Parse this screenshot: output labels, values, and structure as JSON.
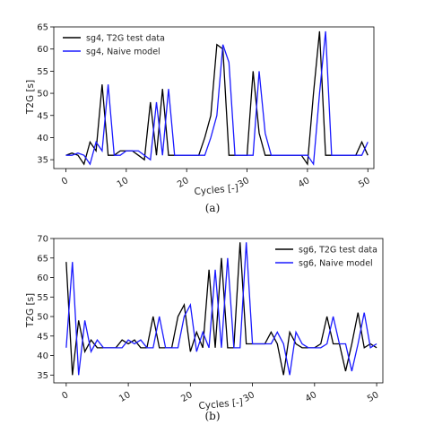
{
  "chart_data": [
    {
      "type": "line",
      "caption": "(a)",
      "xlabel": "Cycles [-]",
      "ylabel": "T2G [s]",
      "xlim": [
        -2,
        51
      ],
      "ylim": [
        33,
        65
      ],
      "xticks": [
        0,
        10,
        20,
        30,
        40,
        50
      ],
      "yticks": [
        35,
        40,
        45,
        50,
        55,
        60,
        65
      ],
      "legend_position": "top-left",
      "series": [
        {
          "name": "sg4, T2G test data",
          "color": "#000000",
          "x": [
            0,
            1,
            2,
            3,
            4,
            5,
            6,
            7,
            8,
            9,
            10,
            11,
            12,
            13,
            14,
            15,
            16,
            17,
            18,
            19,
            20,
            21,
            22,
            23,
            24,
            25,
            26,
            27,
            28,
            29,
            30,
            31,
            32,
            33,
            34,
            35,
            36,
            37,
            38,
            39,
            40,
            41,
            42,
            43,
            44,
            45,
            46,
            47,
            48,
            49,
            50
          ],
          "values": [
            36,
            36.5,
            36,
            34,
            39,
            37,
            52,
            36,
            36,
            37,
            37,
            37,
            36,
            35,
            48,
            36,
            51,
            36,
            36,
            36,
            36,
            36,
            36,
            40,
            45,
            61,
            60,
            36,
            36,
            36,
            36,
            55,
            41,
            36,
            36,
            36,
            36,
            36,
            36,
            36,
            34,
            50,
            64,
            36,
            36,
            36,
            36,
            36,
            36,
            39,
            36
          ]
        },
        {
          "name": "sg4, Naive model",
          "color": "#1a1aff",
          "x": [
            0,
            1,
            2,
            3,
            4,
            5,
            6,
            7,
            8,
            9,
            10,
            11,
            12,
            13,
            14,
            15,
            16,
            17,
            18,
            19,
            20,
            21,
            22,
            23,
            24,
            25,
            26,
            27,
            28,
            29,
            30,
            31,
            32,
            33,
            34,
            35,
            36,
            37,
            38,
            39,
            40,
            41,
            42,
            43,
            44,
            45,
            46,
            47,
            48,
            49,
            50
          ],
          "values": [
            36,
            36,
            36.5,
            36,
            34,
            39,
            37,
            52,
            36,
            36,
            37,
            37,
            37,
            36,
            35,
            48,
            36,
            51,
            36,
            36,
            36,
            36,
            36,
            36,
            40,
            45,
            61,
            57,
            36,
            36,
            36,
            36,
            55,
            41,
            36,
            36,
            36,
            36,
            36,
            36,
            36,
            34,
            50,
            64,
            36,
            36,
            36,
            36,
            36,
            36,
            39
          ]
        }
      ]
    },
    {
      "type": "line",
      "caption": "(b)",
      "xlabel": "Cycles [-]",
      "ylabel": "T2G [s]",
      "xlim": [
        -2,
        51
      ],
      "ylim": [
        33,
        70
      ],
      "xticks": [
        0,
        10,
        20,
        30,
        40,
        50
      ],
      "yticks": [
        35,
        40,
        45,
        50,
        55,
        60,
        65,
        70
      ],
      "legend_position": "top-right",
      "series": [
        {
          "name": "sg6, T2G test data",
          "color": "#000000",
          "x": [
            0,
            1,
            2,
            3,
            4,
            5,
            6,
            7,
            8,
            9,
            10,
            11,
            12,
            13,
            14,
            15,
            16,
            17,
            18,
            19,
            20,
            21,
            22,
            23,
            24,
            25,
            26,
            27,
            28,
            29,
            30,
            31,
            32,
            33,
            34,
            35,
            36,
            37,
            38,
            39,
            40,
            41,
            42,
            43,
            44,
            45,
            46,
            47,
            48,
            49,
            50
          ],
          "values": [
            64,
            35,
            49,
            41,
            44,
            42,
            42,
            42,
            42,
            44,
            43,
            44,
            42,
            42,
            50,
            42,
            42,
            42,
            50,
            53,
            41,
            46,
            42,
            62,
            42,
            65,
            42,
            42,
            69,
            43,
            43,
            43,
            43,
            46,
            43,
            35,
            46,
            43,
            42,
            42,
            42,
            43,
            50,
            43,
            43,
            36,
            43,
            51,
            42,
            43,
            42
          ]
        },
        {
          "name": "sg6, Naive model",
          "color": "#1a1aff",
          "x": [
            0,
            1,
            2,
            3,
            4,
            5,
            6,
            7,
            8,
            9,
            10,
            11,
            12,
            13,
            14,
            15,
            16,
            17,
            18,
            19,
            20,
            21,
            22,
            23,
            24,
            25,
            26,
            27,
            28,
            29,
            30,
            31,
            32,
            33,
            34,
            35,
            36,
            37,
            38,
            39,
            40,
            41,
            42,
            43,
            44,
            45,
            46,
            47,
            48,
            49,
            50
          ],
          "values": [
            42,
            64,
            35,
            49,
            41,
            44,
            42,
            42,
            42,
            42,
            44,
            43,
            44,
            42,
            42,
            50,
            42,
            42,
            42,
            50,
            53,
            41,
            46,
            42,
            62,
            42,
            65,
            42,
            42,
            69,
            43,
            43,
            43,
            43,
            46,
            43,
            35,
            46,
            43,
            42,
            42,
            42,
            43,
            50,
            43,
            43,
            36,
            43,
            51,
            42,
            43
          ]
        }
      ]
    }
  ]
}
